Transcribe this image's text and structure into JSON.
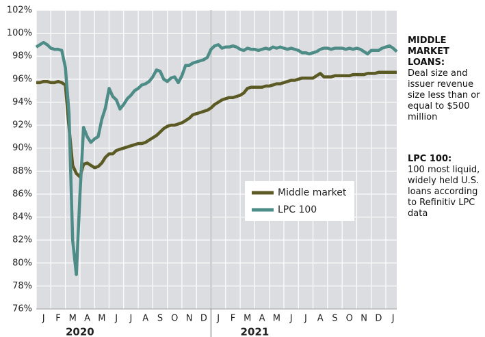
{
  "chart_data": {
    "type": "line",
    "categories": [
      null,
      null,
      "J",
      null,
      null,
      null,
      "F",
      null,
      null,
      null,
      "M",
      null,
      null,
      null,
      "A",
      null,
      null,
      null,
      "M",
      null,
      null,
      null,
      "J",
      null,
      null,
      null,
      "J",
      null,
      null,
      null,
      "A",
      null,
      null,
      null,
      "S",
      null,
      null,
      null,
      "O",
      null,
      null,
      null,
      "N",
      null,
      null,
      null,
      "D",
      null,
      null,
      null,
      "J",
      null,
      null,
      null,
      "F",
      null,
      null,
      null,
      "M",
      null,
      null,
      null,
      "A",
      null,
      null,
      null,
      "M",
      null,
      null,
      null,
      "J",
      null,
      null,
      null,
      "J",
      null,
      null,
      null,
      "A",
      null,
      null,
      null,
      "S",
      null,
      null,
      null,
      "O",
      null,
      null,
      null,
      "N",
      null,
      null,
      null,
      "D",
      null,
      null,
      null,
      "J",
      null
    ],
    "x_groups": [
      "2020",
      "2021"
    ],
    "series": [
      {
        "name": "Middle market",
        "color": "#5b5a24",
        "values": [
          95.7,
          95.7,
          95.8,
          95.8,
          95.7,
          95.7,
          95.8,
          95.7,
          95.5,
          91.8,
          88.5,
          87.8,
          87.5,
          88.6,
          88.7,
          88.5,
          88.3,
          88.4,
          88.7,
          89.2,
          89.5,
          89.5,
          89.8,
          89.9,
          90.0,
          90.1,
          90.2,
          90.3,
          90.4,
          90.4,
          90.5,
          90.7,
          90.9,
          91.1,
          91.4,
          91.7,
          91.9,
          92.0,
          92.0,
          92.1,
          92.2,
          92.4,
          92.6,
          92.9,
          93.0,
          93.1,
          93.2,
          93.3,
          93.5,
          93.8,
          94.0,
          94.2,
          94.3,
          94.4,
          94.4,
          94.5,
          94.6,
          94.8,
          95.2,
          95.3,
          95.3,
          95.3,
          95.3,
          95.4,
          95.4,
          95.5,
          95.6,
          95.6,
          95.7,
          95.8,
          95.9,
          95.9,
          96.0,
          96.1,
          96.1,
          96.1,
          96.1,
          96.3,
          96.5,
          96.2,
          96.2,
          96.2,
          96.3,
          96.3,
          96.3,
          96.3,
          96.3,
          96.4,
          96.4,
          96.4,
          96.4,
          96.5,
          96.5,
          96.5,
          96.6,
          96.6,
          96.6,
          96.6,
          96.6,
          96.6
        ]
      },
      {
        "name": "LPC 100",
        "color": "#4e8c88",
        "values": [
          98.8,
          99.0,
          99.2,
          99.0,
          98.7,
          98.6,
          98.6,
          98.5,
          97.0,
          93.0,
          82.0,
          79.0,
          86.0,
          91.8,
          91.0,
          90.5,
          90.8,
          91.0,
          92.5,
          93.5,
          95.2,
          94.5,
          94.2,
          93.4,
          93.8,
          94.3,
          94.6,
          95.0,
          95.2,
          95.5,
          95.6,
          95.8,
          96.2,
          96.8,
          96.7,
          96.0,
          95.8,
          96.1,
          96.2,
          95.7,
          96.3,
          97.2,
          97.2,
          97.4,
          97.5,
          97.6,
          97.7,
          97.9,
          98.6,
          98.9,
          99.0,
          98.7,
          98.8,
          98.8,
          98.9,
          98.8,
          98.6,
          98.5,
          98.7,
          98.6,
          98.6,
          98.5,
          98.6,
          98.7,
          98.6,
          98.8,
          98.7,
          98.8,
          98.7,
          98.6,
          98.7,
          98.6,
          98.5,
          98.3,
          98.3,
          98.2,
          98.3,
          98.4,
          98.6,
          98.7,
          98.7,
          98.6,
          98.7,
          98.7,
          98.7,
          98.6,
          98.7,
          98.6,
          98.7,
          98.6,
          98.4,
          98.2,
          98.5,
          98.5,
          98.5,
          98.7,
          98.8,
          98.9,
          98.7,
          98.4
        ]
      }
    ],
    "ylim": [
      76,
      102
    ],
    "yticks": [
      {
        "value": 76,
        "label": "76%"
      },
      {
        "value": 78,
        "label": "78%"
      },
      {
        "value": 80,
        "label": "80%"
      },
      {
        "value": 82,
        "label": "82%"
      },
      {
        "value": 84,
        "label": "84%"
      },
      {
        "value": 86,
        "label": "86%"
      },
      {
        "value": 88,
        "label": "88%"
      },
      {
        "value": 90,
        "label": "90%"
      },
      {
        "value": 92,
        "label": "92%"
      },
      {
        "value": 94,
        "label": "94%"
      },
      {
        "value": 96,
        "label": "96%"
      },
      {
        "value": 98,
        "label": "98%"
      },
      {
        "value": 100,
        "label": "100%"
      },
      {
        "value": 102,
        "label": "102%"
      }
    ],
    "grid": true,
    "notes": [
      {
        "heading": "MIDDLE MARKET LOANS:",
        "text": "Deal size and issuer revenue size less than or equal to $500 million"
      },
      {
        "heading": "LPC 100:",
        "text": "100 most liquid, widely held U.S. loans according to Refinitiv LPC data"
      }
    ]
  }
}
